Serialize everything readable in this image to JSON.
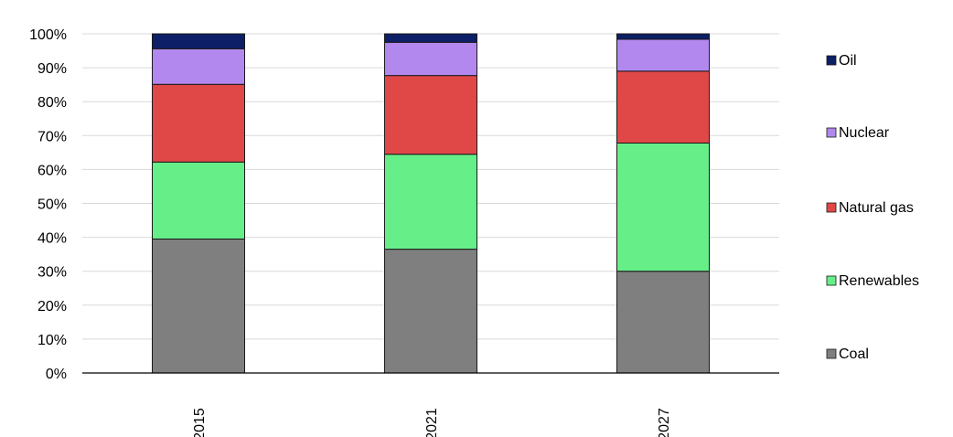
{
  "chart_data": {
    "type": "bar",
    "stacked": true,
    "normalized": true,
    "title": "",
    "xlabel": "",
    "ylabel": "",
    "ylim": [
      0,
      100
    ],
    "y_tick_labels": [
      "0%",
      "10%",
      "20%",
      "30%",
      "40%",
      "50%",
      "60%",
      "70%",
      "80%",
      "90%",
      "100%"
    ],
    "y_tick_values": [
      0,
      10,
      20,
      30,
      40,
      50,
      60,
      70,
      80,
      90,
      100
    ],
    "grid": "horizontal",
    "legend_position": "right",
    "categories": [
      "2015",
      "2021",
      "2027"
    ],
    "series": [
      {
        "name": "Coal",
        "color": "#7f7f7f",
        "values": [
          39.5,
          36.5,
          30.0
        ]
      },
      {
        "name": "Renewables",
        "color": "#66ee88",
        "values": [
          22.7,
          28.0,
          37.8
        ]
      },
      {
        "name": "Natural gas",
        "color": "#e04848",
        "values": [
          22.9,
          23.2,
          21.2
        ]
      },
      {
        "name": "Nuclear",
        "color": "#b388ee",
        "values": [
          10.5,
          9.8,
          9.4
        ]
      },
      {
        "name": "Oil",
        "color": "#0d1f66",
        "values": [
          4.4,
          2.5,
          1.6
        ]
      }
    ],
    "legend_order": [
      "Oil",
      "Nuclear",
      "Natural gas",
      "Renewables",
      "Coal"
    ]
  }
}
